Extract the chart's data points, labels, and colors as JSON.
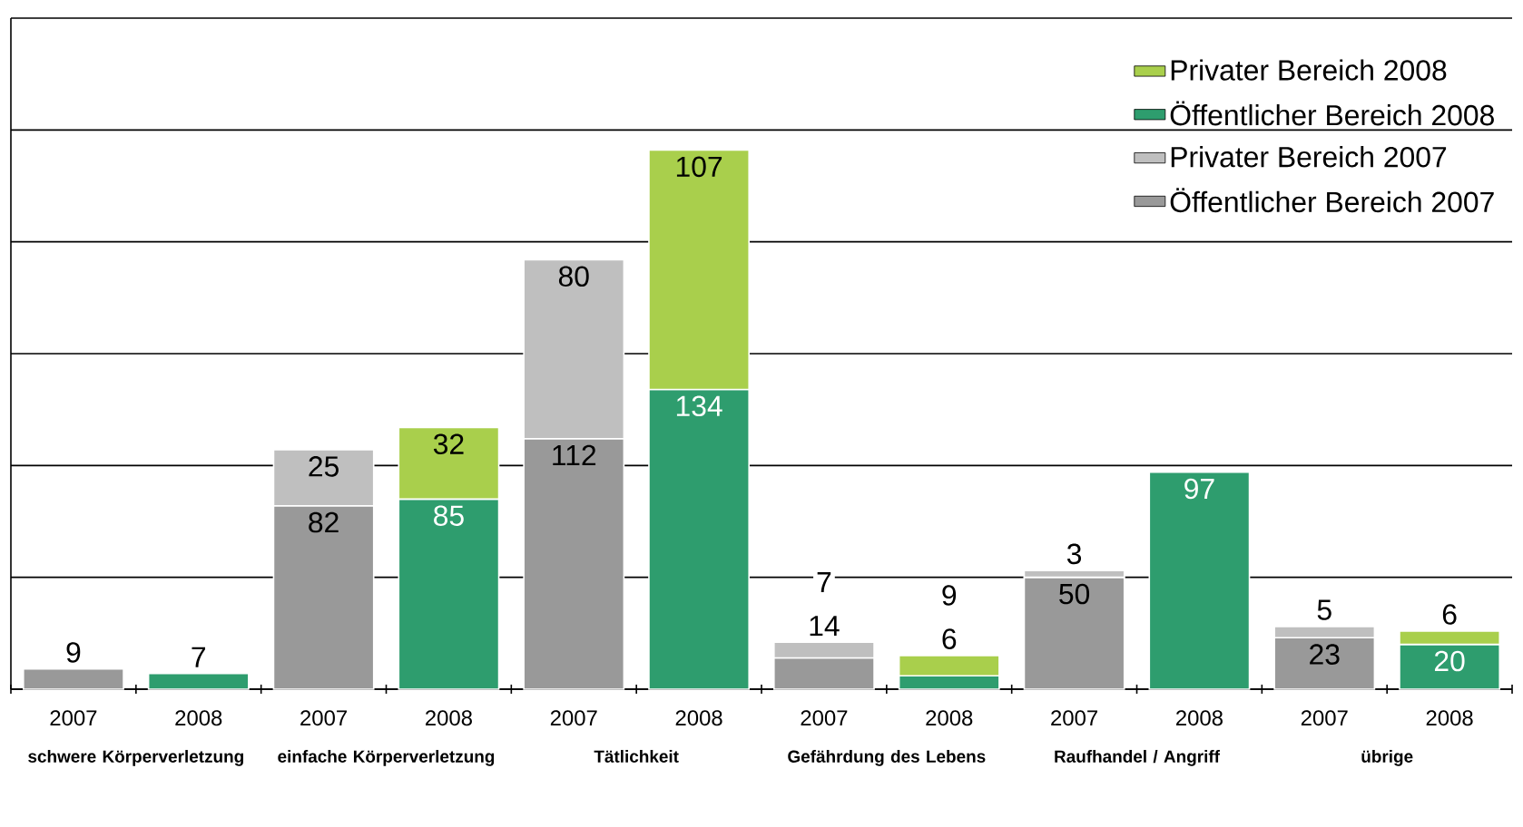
{
  "chart_data": {
    "type": "bar",
    "stacked": true,
    "categories": [
      "2007",
      "2008",
      "2007",
      "2008",
      "2007",
      "2008",
      "2007",
      "2008",
      "2007",
      "2008",
      "2007",
      "2008"
    ],
    "series": [
      {
        "name": "Öffentlicher Bereich 2007",
        "color": "#999999",
        "values": [
          9,
          null,
          82,
          null,
          112,
          null,
          14,
          null,
          50,
          null,
          23,
          null
        ]
      },
      {
        "name": "Privater Bereich 2007",
        "color": "#bfbfbf",
        "values": [
          null,
          null,
          25,
          null,
          80,
          null,
          7,
          null,
          3,
          null,
          5,
          null
        ]
      },
      {
        "name": "Öffentlicher Bereich 2008",
        "color": "#2e9d6e",
        "values": [
          null,
          7,
          null,
          85,
          null,
          134,
          null,
          6,
          null,
          97,
          null,
          20
        ]
      },
      {
        "name": "Privater Bereich 2008",
        "color": "#a9cf4c",
        "values": [
          null,
          null,
          null,
          32,
          null,
          107,
          null,
          9,
          null,
          null,
          null,
          6
        ]
      }
    ],
    "annotations": [
      "schwere Körperverletzung",
      "einfache Körperverletzung",
      "Tätlichkeit",
      "Gefährdung des Lebens",
      "Raufhandel / Angriff",
      "übrige"
    ],
    "ylim": [
      0,
      300
    ],
    "yticks": [
      {
        "value": 0,
        "label": null
      },
      {
        "value": 50,
        "label": null
      },
      {
        "value": 100,
        "label": null
      },
      {
        "value": 150,
        "label": null
      },
      {
        "value": 200,
        "label": null
      },
      {
        "value": 250,
        "label": null
      },
      {
        "value": 300,
        "label": null
      }
    ],
    "grid": "y",
    "legend": "top right",
    "data_labels": true
  }
}
